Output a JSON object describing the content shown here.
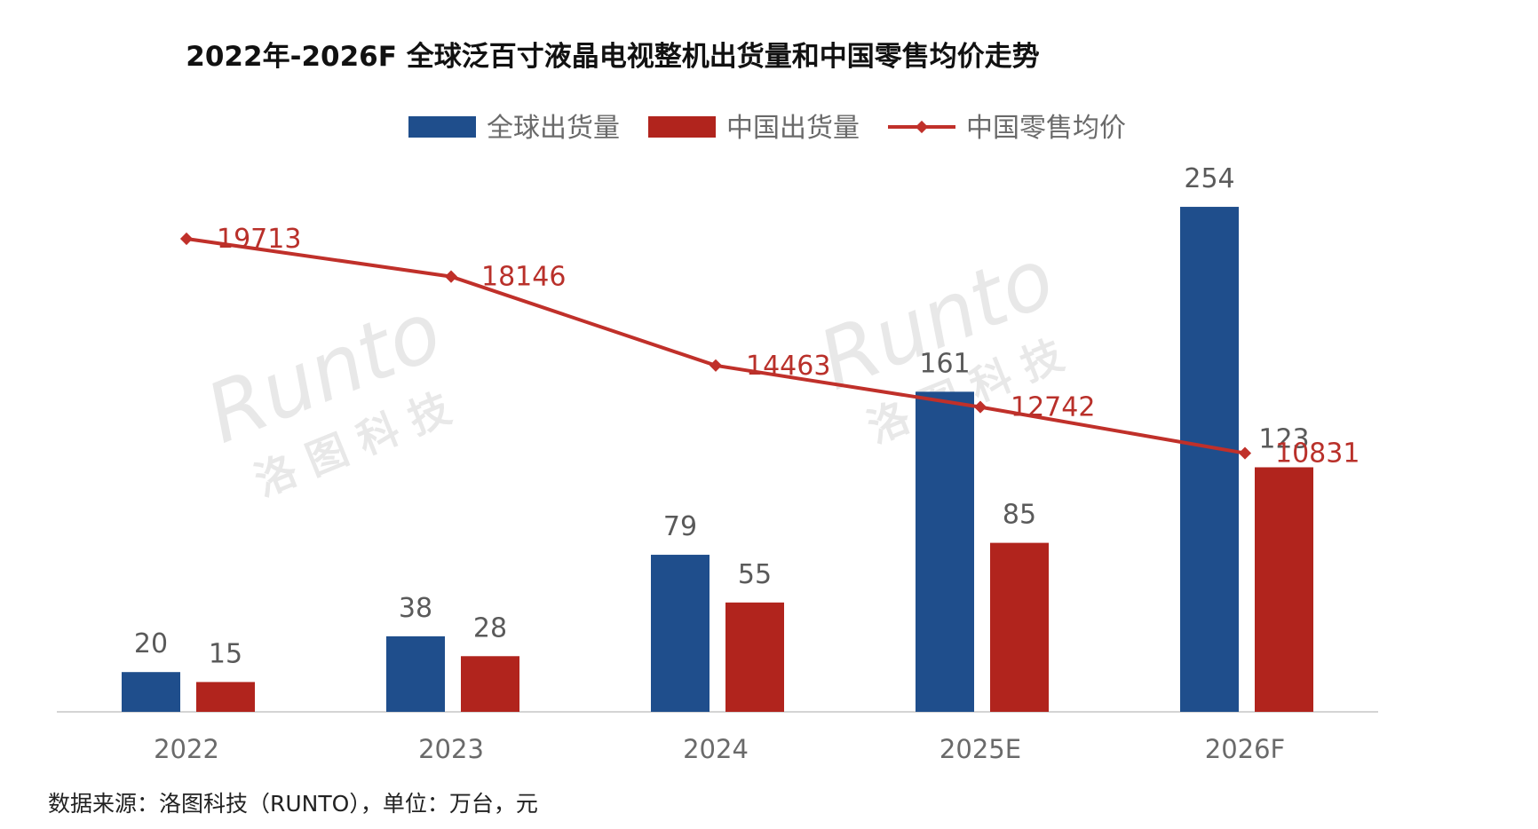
{
  "title": "2022年-2026F 全球泛百寸液晶电视整机出货量和中国零售均价走势",
  "source_note": "数据来源：洛图科技（RUNTO），单位：万台，元",
  "watermark": {
    "brand": "Runto",
    "subtitle": "洛 图 科 技"
  },
  "colors": {
    "global": "#1f4e8c",
    "china": "#b1241d",
    "price": "#c0302a",
    "axis": "#d4d4d4"
  },
  "chart_data": {
    "type": "bar",
    "categories": [
      "2022",
      "2023",
      "2024",
      "2025E",
      "2026F"
    ],
    "series": [
      {
        "name": "全球出货量",
        "type": "bar",
        "values": [
          20,
          38,
          79,
          161,
          254
        ]
      },
      {
        "name": "中国出货量",
        "type": "bar",
        "values": [
          15,
          28,
          55,
          85,
          123
        ]
      },
      {
        "name": "中国零售均价",
        "type": "line",
        "values": [
          19713,
          18146,
          14463,
          12742,
          10831
        ]
      }
    ],
    "legend_position": "top",
    "grid": false
  }
}
